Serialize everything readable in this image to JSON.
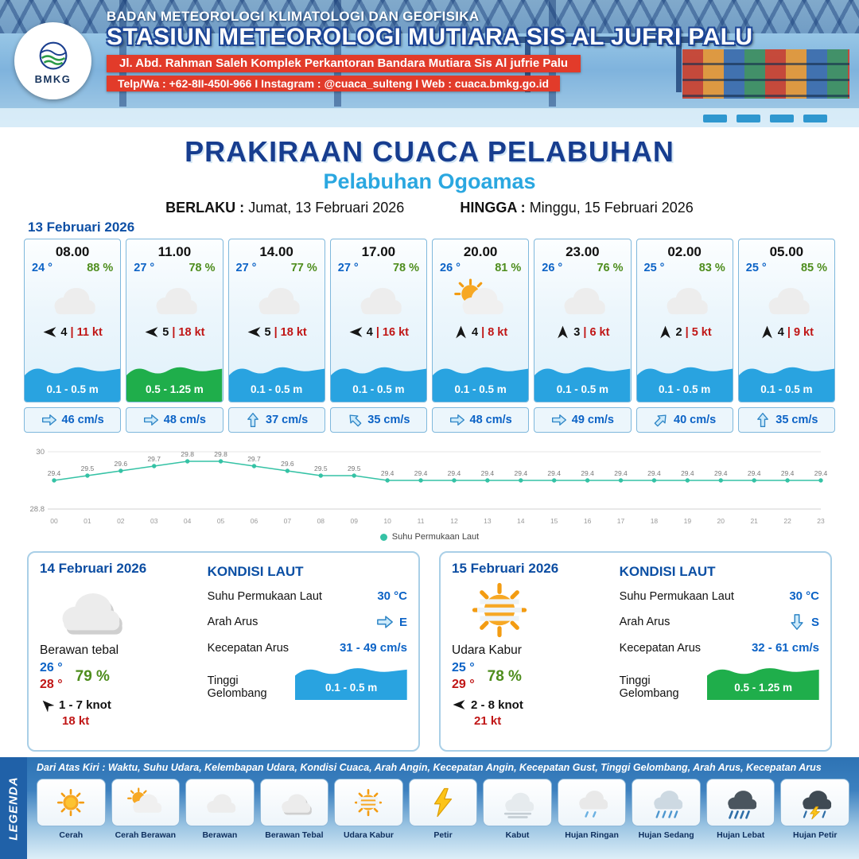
{
  "header": {
    "logo_text": "BMKG",
    "org": "BADAN METEOROLOGI KLIMATOLOGI DAN GEOFISIKA",
    "station": "STASIUN METEOROLOGI MUTIARA SIS AL JUFRI PALU",
    "address": "Jl. Abd. Rahman Saleh Komplek Perkantoran Bandara Mutiara Sis Al jufrie Palu",
    "contact": "Telp/Wa : +62-8II-450I-966  I  Instagram : @cuaca_sulteng  I  Web : cuaca.bmkg.go.id"
  },
  "title": {
    "main": "PRAKIRAAN CUACA PELABUHAN",
    "port": "Pelabuhan Ogoamas",
    "berlaku_label": "BERLAKU :",
    "berlaku_value": "Jumat, 13 Februari 2026",
    "hingga_label": "HINGGA :",
    "hingga_value": "Minggu, 15 Februari 2026"
  },
  "forecast_date": "13 Februari 2026",
  "forecast_cards": [
    {
      "time": "08.00",
      "temp": "24 °",
      "humidity": "88 %",
      "icon": "cloud",
      "wind_dir": "left",
      "wind_speed": "4",
      "gust": "| 11 kt",
      "wave": "0.1 - 0.5 m",
      "wave_color": "blue",
      "current_dir": "right",
      "current": "46 cm/s"
    },
    {
      "time": "11.00",
      "temp": "27 °",
      "humidity": "78 %",
      "icon": "cloud",
      "wind_dir": "left",
      "wind_speed": "5",
      "gust": "| 18 kt",
      "wave": "0.5 - 1.25 m",
      "wave_color": "green",
      "current_dir": "right",
      "current": "48 cm/s"
    },
    {
      "time": "14.00",
      "temp": "27 °",
      "humidity": "77 %",
      "icon": "cloud",
      "wind_dir": "left",
      "wind_speed": "5",
      "gust": "| 18 kt",
      "wave": "0.1 - 0.5 m",
      "wave_color": "blue",
      "current_dir": "up",
      "current": "37 cm/s"
    },
    {
      "time": "17.00",
      "temp": "27 °",
      "humidity": "78 %",
      "icon": "cloud",
      "wind_dir": "left",
      "wind_speed": "4",
      "gust": "| 16 kt",
      "wave": "0.1 - 0.5 m",
      "wave_color": "blue",
      "current_dir": "up-left",
      "current": "35 cm/s"
    },
    {
      "time": "20.00",
      "temp": "26 °",
      "humidity": "81 %",
      "icon": "sun-cloud",
      "wind_dir": "up",
      "wind_speed": "4",
      "gust": "| 8 kt",
      "wave": "0.1 - 0.5 m",
      "wave_color": "blue",
      "current_dir": "right",
      "current": "48 cm/s"
    },
    {
      "time": "23.00",
      "temp": "26 °",
      "humidity": "76 %",
      "icon": "cloud",
      "wind_dir": "up",
      "wind_speed": "3",
      "gust": "| 6 kt",
      "wave": "0.1 - 0.5 m",
      "wave_color": "blue",
      "current_dir": "right",
      "current": "49 cm/s"
    },
    {
      "time": "02.00",
      "temp": "25 °",
      "humidity": "83 %",
      "icon": "cloud",
      "wind_dir": "up",
      "wind_speed": "2",
      "gust": "| 5 kt",
      "wave": "0.1 - 0.5 m",
      "wave_color": "blue",
      "current_dir": "up-right",
      "current": "40 cm/s"
    },
    {
      "time": "05.00",
      "temp": "25 °",
      "humidity": "85 %",
      "icon": "cloud",
      "wind_dir": "up",
      "wind_speed": "4",
      "gust": "| 9 kt",
      "wave": "0.1 - 0.5 m",
      "wave_color": "blue",
      "current_dir": "up",
      "current": "35 cm/s"
    }
  ],
  "chart_data": {
    "type": "line",
    "series_name": "Suhu Permukaan Laut",
    "x": [
      "00",
      "01",
      "02",
      "03",
      "04",
      "05",
      "06",
      "07",
      "08",
      "09",
      "10",
      "11",
      "12",
      "13",
      "14",
      "15",
      "16",
      "17",
      "18",
      "19",
      "20",
      "21",
      "22",
      "23"
    ],
    "values": [
      29.4,
      29.5,
      29.6,
      29.7,
      29.8,
      29.8,
      29.7,
      29.6,
      29.5,
      29.5,
      29.4,
      29.4,
      29.4,
      29.4,
      29.4,
      29.4,
      29.4,
      29.4,
      29.4,
      29.4,
      29.4,
      29.4,
      29.4,
      29.4
    ],
    "title": "",
    "xlabel": "",
    "ylabel": "",
    "ylim": [
      28.8,
      30
    ],
    "line_color": "#35c2a5",
    "legend_position": "bottom"
  },
  "daily_cards": [
    {
      "date": "14 Februari 2026",
      "icon": "cloud-thick",
      "condition": "Berawan tebal",
      "temp_min": "26 °",
      "temp_max": "28 °",
      "humidity": "79 %",
      "wind_dir": "up-left",
      "wind_range": "1  - 7 knot",
      "gust": "18 kt",
      "sea_title": "KONDISI LAUT",
      "sst_label": "Suhu Permukaan Laut",
      "sst": "30 °C",
      "dir_label": "Arah Arus",
      "dir_arrow": "right",
      "dir_text": "E",
      "speed_label": "Kecepatan Arus",
      "speed": "31  - 49 cm/s",
      "wave_label": "Tinggi Gelombang",
      "wave": "0.1 - 0.5 m",
      "wave_color": "blue"
    },
    {
      "date": "15 Februari 2026",
      "icon": "hazy-sun",
      "condition": "Udara Kabur",
      "temp_min": "25 °",
      "temp_max": "29 °",
      "humidity": "78 %",
      "wind_dir": "left",
      "wind_range": "2  - 8 knot",
      "gust": "21 kt",
      "sea_title": "KONDISI LAUT",
      "sst_label": "Suhu Permukaan Laut",
      "sst": "30 °C",
      "dir_label": "Arah Arus",
      "dir_arrow": "down",
      "dir_text": "S",
      "speed_label": "Kecepatan Arus",
      "speed": "32  - 61 cm/s",
      "wave_label": "Tinggi Gelombang",
      "wave": "0.5 - 1.25 m",
      "wave_color": "green"
    }
  ],
  "legend": {
    "title": "LEGENDA",
    "note": "Dari Atas Kiri : Waktu, Suhu Udara, Kelembapan Udara, Kondisi Cuaca, Arah Angin, Kecepatan Angin, Kecepatan Gust, Tinggi Gelombang, Arah Arus, Kecepatan Arus",
    "items": [
      {
        "icon": "sun",
        "label": "Cerah"
      },
      {
        "icon": "sun-cloud",
        "label": "Cerah Berawan"
      },
      {
        "icon": "cloud",
        "label": "Berawan"
      },
      {
        "icon": "cloud-thick",
        "label": "Berawan Tebal"
      },
      {
        "icon": "hazy-sun",
        "label": "Udara Kabur"
      },
      {
        "icon": "lightning",
        "label": "Petir"
      },
      {
        "icon": "fog",
        "label": "Kabut"
      },
      {
        "icon": "rain-light",
        "label": "Hujan Ringan"
      },
      {
        "icon": "rain-medium",
        "label": "Hujan Sedang"
      },
      {
        "icon": "rain-heavy",
        "label": "Hujan Lebat"
      },
      {
        "icon": "storm",
        "label": "Hujan Petir"
      }
    ]
  },
  "colors": {
    "accent_blue": "#0c63c6",
    "humidity_green": "#4e8d1d",
    "gust_red": "#c01616",
    "wave_blue": "#29a3e0",
    "wave_green": "#1fae4b",
    "chart_line": "#35c2a5",
    "ribbon_red": "#e23b2a",
    "legend_blue": "#2d73b4"
  }
}
